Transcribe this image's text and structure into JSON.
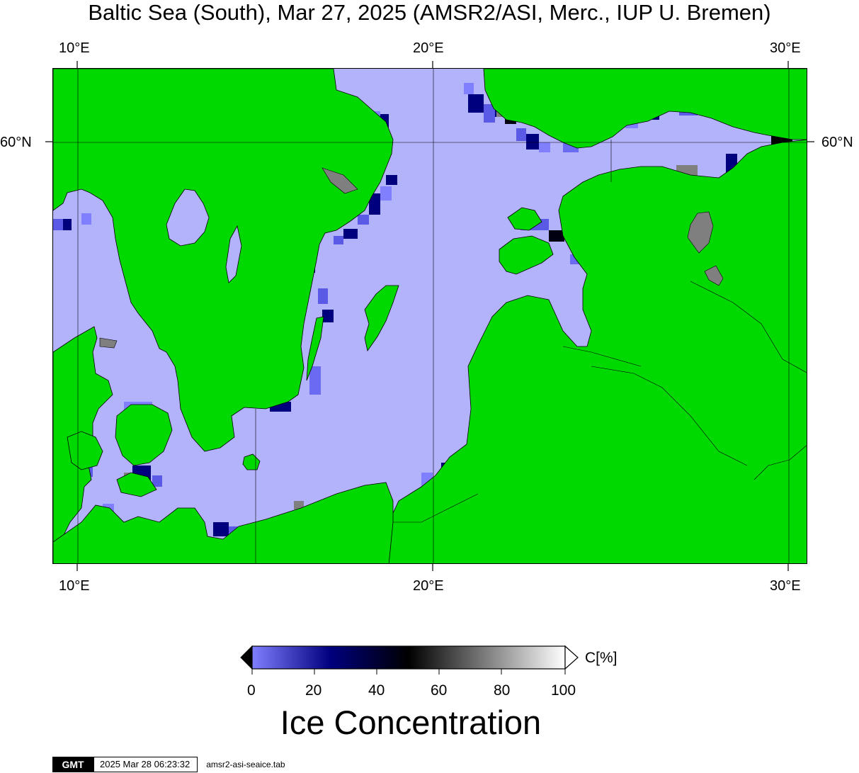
{
  "title": "Baltic Sea (South), Mar 27, 2025 (AMSR2/ASI, Merc., IUP U. Bremen)",
  "axes": {
    "top_lon_labels": [
      "10°E",
      "20°E",
      "30°E"
    ],
    "bottom_lon_labels": [
      "10°E",
      "20°E",
      "30°E"
    ],
    "left_lat_labels": [
      "60°N"
    ],
    "right_lat_labels": [
      "60°N"
    ]
  },
  "colors": {
    "land": "#00d900",
    "open_water": "#b3b3fb",
    "land_mask_gray": "#7f7f7f",
    "coast_line": "#000000"
  },
  "colorbar": {
    "unit_label": "C[%]",
    "tick_labels": [
      "0",
      "20",
      "40",
      "60",
      "80",
      "100"
    ],
    "title": "Ice Concentration",
    "stops": [
      "#7f7fff",
      "#00007f",
      "#000000",
      "#7f7f7f",
      "#ffffff"
    ]
  },
  "footer": {
    "logo_text": "GMT",
    "timestamp": "2025 Mar 28 06:23:32",
    "filename": "amsr2-asi-seaice.tab"
  }
}
